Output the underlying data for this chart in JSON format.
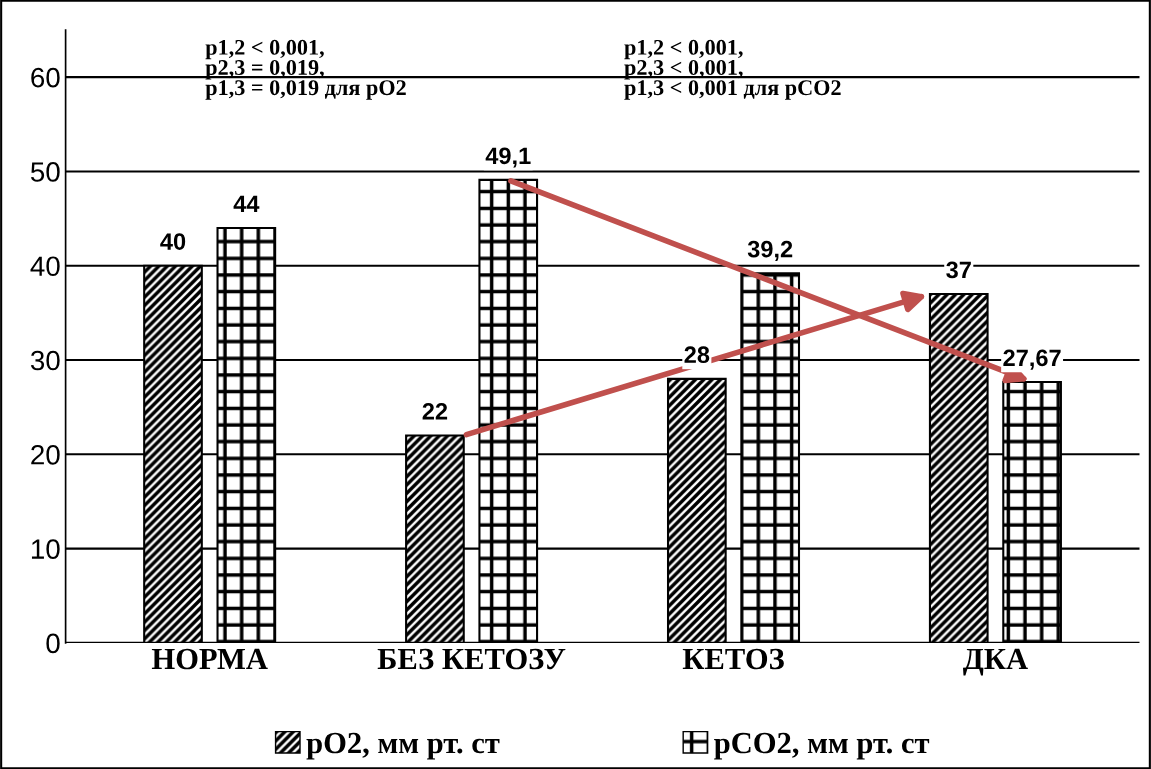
{
  "chart_data": {
    "type": "bar",
    "categories": [
      "НОРМА",
      "БЕЗ КЕТОЗУ",
      "КЕТОЗ",
      "ДКА"
    ],
    "series": [
      {
        "name": "pO2, мм рт. ст",
        "color": "#000000",
        "values": [
          40,
          22,
          28,
          37
        ],
        "value_labels": [
          "40",
          "22",
          "28",
          "37"
        ]
      },
      {
        "name": "pCO2, мм рт. ст",
        "color": "#000000",
        "values": [
          44,
          49.1,
          39.2,
          27.67
        ],
        "value_labels": [
          "44",
          "49,1",
          "39,2",
          "27,67"
        ]
      }
    ],
    "ylim": [
      0,
      65
    ],
    "yticks": [
      0,
      10,
      20,
      30,
      40,
      50,
      60
    ],
    "grid": "y",
    "legend": "bottom",
    "annotations": [
      "p1,2 < 0,001,\np2,3 = 0,019,\np1,3 = 0,019 для pO2",
      "p1,2 < 0,001,\np2,3 < 0,001,\np1,3 < 0,001 для pCO2"
    ]
  }
}
